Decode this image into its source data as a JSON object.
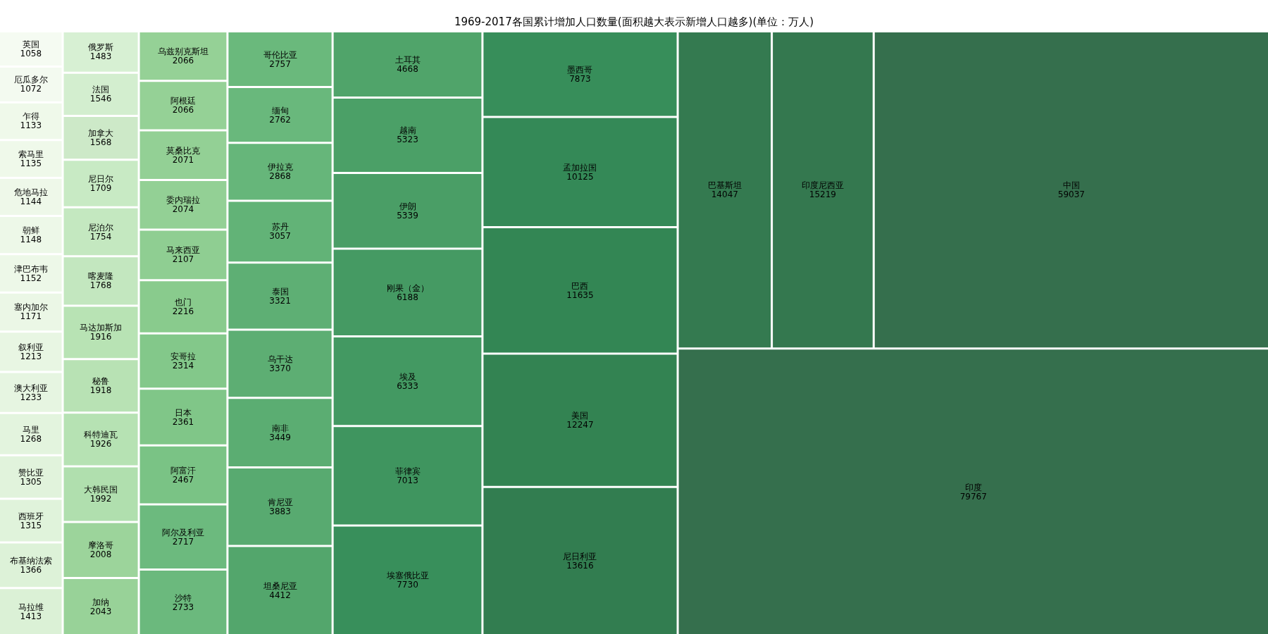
{
  "chart_data": {
    "type": "other",
    "title": "1969-2017各国累计增加人口数量(面积越大表示新增人口越多)(单位：万人)",
    "categories": [
      "印度",
      "中国",
      "印度尼西亚",
      "巴基斯坦",
      "尼日利亚",
      "美国",
      "巴西",
      "孟加拉国",
      "墨西哥",
      "埃塞俄比亚",
      "菲律宾",
      "埃及",
      "刚果（金）",
      "伊朗",
      "越南",
      "土耳其",
      "坦桑尼亚",
      "肯尼亚",
      "南非",
      "乌干达",
      "泰国",
      "苏丹",
      "伊拉克",
      "缅甸",
      "哥伦比亚",
      "沙特",
      "阿尔及利亚",
      "阿富汗",
      "日本",
      "安哥拉",
      "也门",
      "马来西亚",
      "委内瑞拉",
      "莫桑比克",
      "乌兹别克斯坦",
      "阿根廷",
      "加纳",
      "摩洛哥",
      "大韩民国",
      "科特迪瓦",
      "秘鲁",
      "马达加斯加",
      "喀麦隆",
      "尼泊尔",
      "尼日尔",
      "加拿大",
      "法国",
      "俄罗斯",
      "马拉维",
      "布基纳法索",
      "西班牙",
      "赞比亚",
      "马里",
      "澳大利亚",
      "叙利亚",
      "塞内加尔",
      "津巴布韦",
      "朝鲜",
      "危地马拉",
      "索马里",
      "乍得",
      "厄瓜多尔",
      "英国"
    ],
    "values": [
      79767,
      59037,
      15219,
      14047,
      13616,
      12247,
      11635,
      10125,
      7873,
      7730,
      7013,
      6333,
      6188,
      5339,
      5323,
      4668,
      4412,
      3883,
      3449,
      3370,
      3321,
      3057,
      2868,
      2762,
      2757,
      2733,
      2717,
      2467,
      2361,
      2314,
      2216,
      2107,
      2074,
      2071,
      2066,
      2066,
      2043,
      2008,
      1992,
      1926,
      1918,
      1916,
      1768,
      1754,
      1709,
      1568,
      1546,
      1483,
      1413,
      1366,
      1315,
      1305,
      1268,
      1233,
      1213,
      1171,
      1152,
      1148,
      1144,
      1135,
      1133,
      1072,
      1058
    ],
    "colors": [
      "#356f4d",
      "#356f4d",
      "#34784f",
      "#347a50",
      "#327d50",
      "#338352",
      "#338654",
      "#348957",
      "#378e5a",
      "#388f5b",
      "#3f955f",
      "#439962",
      "#459a63",
      "#4a9e66",
      "#4ba067",
      "#50a46a",
      "#53a66c",
      "#58aa70",
      "#5bad72",
      "#5dae73",
      "#5eaf74",
      "#62b377",
      "#66b67a",
      "#69b87c",
      "#6ab97c",
      "#6bb97d",
      "#6cba7e",
      "#7ac385",
      "#80c688",
      "#83c88a",
      "#89cb8d",
      "#8fce92",
      "#93d095",
      "#93d095",
      "#95d196",
      "#95d196",
      "#98d298",
      "#9cd49b",
      "#b0dfae",
      "#b6e2b3",
      "#b8e2b4",
      "#b8e3b4",
      "#c3e7bf",
      "#c4e8c0",
      "#c8eac4",
      "#cde9c8",
      "#d3eecf",
      "#d7f0d3",
      "#dbf1d6",
      "#ddf2d8",
      "#e0f3db",
      "#e1f3dc",
      "#e3f4de",
      "#e6f5e1",
      "#e8f6e3",
      "#ebf7e6",
      "#edf8e8",
      "#edf8e8",
      "#eef8e9",
      "#eff9ea",
      "#eff9ea",
      "#f3faf0",
      "#f5fbf2"
    ],
    "data_labels": true
  }
}
